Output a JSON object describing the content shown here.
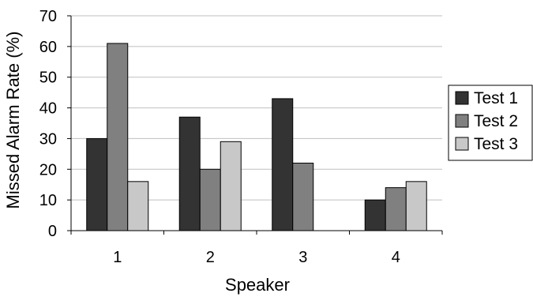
{
  "chart_data": {
    "type": "bar",
    "title": "",
    "xlabel": "Speaker",
    "ylabel": "Missed Alarm Rate (%)",
    "categories": [
      "1",
      "2",
      "3",
      "4"
    ],
    "ylim": [
      0,
      70
    ],
    "yticks": [
      0,
      10,
      20,
      30,
      40,
      50,
      60,
      70
    ],
    "grid": true,
    "legend_position": "right",
    "series": [
      {
        "name": "Test 1",
        "color": "#333333",
        "values": [
          30,
          37,
          43,
          10
        ]
      },
      {
        "name": "Test 2",
        "color": "#808080",
        "values": [
          61,
          20,
          22,
          14
        ]
      },
      {
        "name": "Test 3",
        "color": "#c8c8c8",
        "values": [
          16,
          29,
          0,
          16
        ]
      }
    ]
  }
}
